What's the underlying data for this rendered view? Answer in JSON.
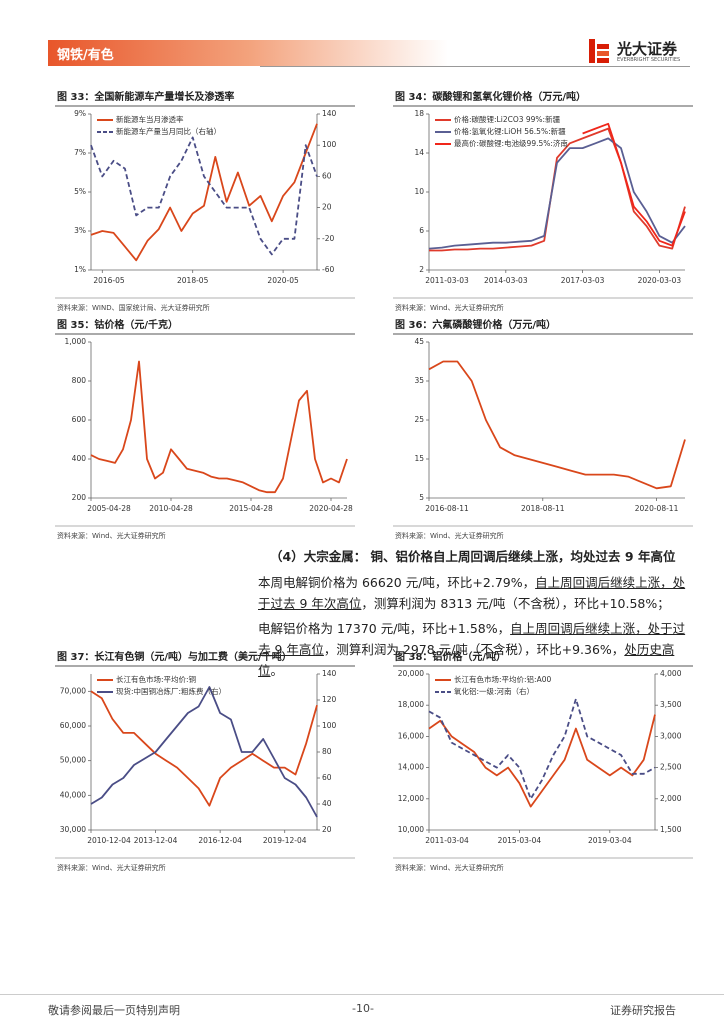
{
  "header": {
    "section": "钢铁/有色",
    "brand": "光大证券",
    "brand_en": "EVERBRIGHT SECURITIES"
  },
  "chart_data": [
    {
      "type": "line",
      "title": "图 33：全国新能源车产量增长及渗透率",
      "source": "资料来源：WIND、国家统计局、光大证券研究所",
      "categories": [
        "2016-02",
        "2016-05",
        "2016-08",
        "2016-11",
        "2017-02",
        "2017-05",
        "2017-08",
        "2017-11",
        "2018-02",
        "2018-05",
        "2018-08",
        "2018-11",
        "2019-02",
        "2019-05",
        "2019-08",
        "2019-11",
        "2020-02",
        "2020-05",
        "2020-08",
        "2020-11",
        "2021-02"
      ],
      "xticks": [
        "2016-05",
        "2018-05",
        "2020-05"
      ],
      "ylim": [
        1,
        9
      ],
      "yticks": [
        {
          "value": 1,
          "label": "1%"
        },
        {
          "value": 3,
          "label": "3%"
        },
        {
          "value": 5,
          "label": "5%"
        },
        {
          "value": 7,
          "label": "7%"
        },
        {
          "value": 9,
          "label": "9%"
        }
      ],
      "y2lim": [
        -60,
        140
      ],
      "y2ticks": [
        -60,
        -20,
        20,
        60,
        100,
        140
      ],
      "series": [
        {
          "name": "新能源车当月渗透率",
          "color": "#d9471b",
          "values": [
            2.8,
            3.0,
            2.9,
            2.2,
            1.5,
            2.5,
            3.1,
            4.2,
            3.0,
            3.9,
            4.3,
            6.8,
            4.5,
            6.0,
            4.3,
            4.8,
            3.5,
            4.8,
            5.5,
            7.0,
            8.5
          ]
        },
        {
          "name": "新能源车产量当月同比（右轴）",
          "color": "#4a4d86",
          "dash": true,
          "axis": "y2",
          "values": [
            100,
            60,
            80,
            70,
            10,
            20,
            20,
            60,
            80,
            110,
            60,
            40,
            20,
            20,
            20,
            -20,
            -40,
            -20,
            -20,
            100,
            60
          ]
        }
      ]
    },
    {
      "type": "line",
      "title": "图 34：碳酸锂和氢氧化锂价格（万元/吨）",
      "source": "资料来源：Wind、光大证券研究所",
      "categories": [
        "2011-03-03",
        "2011-09-03",
        "2012-03-03",
        "2012-09-03",
        "2013-03-03",
        "2013-09-03",
        "2014-03-03",
        "2014-09-03",
        "2015-03-03",
        "2015-09-03",
        "2016-03-03",
        "2016-09-03",
        "2017-03-03",
        "2017-09-03",
        "2018-03-03",
        "2018-09-03",
        "2019-03-03",
        "2019-09-03",
        "2020-03-03",
        "2020-09-03",
        "2021-03-03"
      ],
      "xticks": [
        "2011-03-03",
        "2014-03-03",
        "2017-03-03",
        "2020-03-03"
      ],
      "ylim": [
        2,
        18
      ],
      "yticks": [
        2,
        6,
        10,
        14,
        18
      ],
      "series": [
        {
          "name": "价格:碳酸锂:Li2CO3 99%:新疆",
          "color": "#e03a2b",
          "values": [
            4.0,
            4.0,
            4.1,
            4.1,
            4.2,
            4.2,
            4.3,
            4.4,
            4.5,
            5.0,
            13.5,
            15.0,
            15.5,
            16.0,
            16.5,
            13.0,
            8.0,
            6.5,
            4.5,
            4.2,
            8.5
          ]
        },
        {
          "name": "价格:氢氧化锂:LiOH 56.5%:新疆",
          "color": "#5a5f93",
          "values": [
            4.2,
            4.3,
            4.5,
            4.6,
            4.7,
            4.8,
            4.8,
            4.9,
            5.0,
            5.5,
            13.0,
            14.5,
            14.5,
            15.0,
            15.5,
            14.5,
            10.0,
            8.0,
            5.5,
            4.8,
            6.5
          ]
        },
        {
          "name": "最高价:碳酸锂:电池级99.5%:济南",
          "color": "#f0261a",
          "values": [
            null,
            null,
            null,
            null,
            null,
            null,
            null,
            null,
            null,
            null,
            null,
            null,
            16.0,
            16.5,
            17.0,
            13.0,
            8.5,
            7.0,
            5.0,
            4.5,
            8.0
          ]
        }
      ]
    },
    {
      "type": "line",
      "title": "图 35：钴价格（元/千克）",
      "source": "资料来源：Wind、光大证券研究所",
      "categories": [
        "2005-04-28",
        "2005-10-28",
        "2006-04-28",
        "2006-10-28",
        "2007-04-28",
        "2007-10-28",
        "2008-04-28",
        "2008-10-28",
        "2009-04-28",
        "2009-10-28",
        "2010-04-28",
        "2010-10-28",
        "2011-04-28",
        "2011-10-28",
        "2012-04-28",
        "2012-10-28",
        "2013-04-28",
        "2013-10-28",
        "2014-04-28",
        "2014-10-28",
        "2015-04-28",
        "2015-10-28",
        "2016-04-28",
        "2016-10-28",
        "2017-04-28",
        "2017-10-28",
        "2018-04-28",
        "2018-10-28",
        "2019-04-28",
        "2019-10-28",
        "2020-04-28",
        "2020-10-28",
        "2021-04-28"
      ],
      "xticks": [
        "2005-04-28",
        "2010-04-28",
        "2015-04-28",
        "2020-04-28"
      ],
      "ylim": [
        200,
        1000
      ],
      "yticks": [
        200,
        400,
        600,
        800,
        {
          "value": 1000,
          "label": "1,000"
        }
      ],
      "series": [
        {
          "name": "钴价格",
          "color": "#d9471b",
          "values": [
            420,
            400,
            390,
            380,
            450,
            600,
            900,
            400,
            300,
            330,
            450,
            400,
            350,
            340,
            330,
            310,
            300,
            300,
            290,
            280,
            260,
            240,
            230,
            230,
            300,
            500,
            700,
            750,
            400,
            280,
            300,
            280,
            400
          ]
        }
      ]
    },
    {
      "type": "line",
      "title": "图 36：六氟磷酸锂价格（万元/吨）",
      "source": "资料来源：Wind、光大证券研究所",
      "categories": [
        "2016-08-11",
        "2016-11-11",
        "2017-02-11",
        "2017-05-11",
        "2017-08-11",
        "2017-11-11",
        "2018-02-11",
        "2018-05-11",
        "2018-08-11",
        "2018-11-11",
        "2019-02-11",
        "2019-05-11",
        "2019-08-11",
        "2019-11-11",
        "2020-02-11",
        "2020-05-11",
        "2020-08-11",
        "2020-11-11",
        "2021-02-11"
      ],
      "xticks": [
        "2016-08-11",
        "2018-08-11",
        "2020-08-11"
      ],
      "ylim": [
        5,
        45
      ],
      "yticks": [
        5,
        15,
        25,
        35,
        45
      ],
      "series": [
        {
          "name": "六氟磷酸锂价格",
          "color": "#d9471b",
          "values": [
            38,
            40,
            40,
            35,
            25,
            18,
            16,
            15,
            14,
            13,
            12,
            11,
            11,
            11,
            10.5,
            9,
            7.5,
            8,
            20
          ]
        }
      ]
    },
    {
      "type": "line",
      "title": "图 37：长江有色铜（元/吨）与加工费（美元/千吨）",
      "source": "资料来源：Wind、光大证券研究所",
      "categories": [
        "2010-12-04",
        "2011-06-04",
        "2011-12-04",
        "2012-06-04",
        "2012-12-04",
        "2013-06-04",
        "2013-12-04",
        "2014-06-04",
        "2014-12-04",
        "2015-06-04",
        "2015-12-04",
        "2016-06-04",
        "2016-12-04",
        "2017-06-04",
        "2017-12-04",
        "2018-06-04",
        "2018-12-04",
        "2019-06-04",
        "2019-12-04",
        "2020-06-04",
        "2020-12-04",
        "2021-06-04"
      ],
      "xticks": [
        "2010-12-04",
        "2013-12-04",
        "2016-12-04",
        "2019-12-04"
      ],
      "ylim": [
        30000,
        75000
      ],
      "yticks": [
        {
          "value": 30000,
          "label": "30,000"
        },
        {
          "value": 40000,
          "label": "40,000"
        },
        {
          "value": 50000,
          "label": "50,000"
        },
        {
          "value": 60000,
          "label": "60,000"
        },
        {
          "value": 70000,
          "label": "70,000"
        }
      ],
      "y2lim": [
        20,
        140
      ],
      "y2ticks": [
        20,
        40,
        60,
        80,
        100,
        120,
        140
      ],
      "series": [
        {
          "name": "长江有色市场:平均价:铜",
          "color": "#d9471b",
          "values": [
            70000,
            68000,
            62000,
            58000,
            58000,
            55000,
            52000,
            50000,
            48000,
            45000,
            42000,
            37000,
            45000,
            48000,
            50000,
            52000,
            50000,
            48000,
            48000,
            46000,
            55000,
            66000
          ]
        },
        {
          "name": "现货:中国铜冶炼厂:粗炼费（右）",
          "color": "#4a4d86",
          "axis": "y2",
          "values": [
            40,
            45,
            55,
            60,
            70,
            75,
            80,
            90,
            100,
            110,
            115,
            130,
            110,
            105,
            80,
            80,
            90,
            75,
            60,
            55,
            45,
            30
          ]
        }
      ]
    },
    {
      "type": "line",
      "title": "图 38：铝价格（元/吨）",
      "source": "资料来源：Wind、光大证券研究所",
      "categories": [
        "2011-03-04",
        "2011-09-04",
        "2012-03-04",
        "2012-09-04",
        "2013-03-04",
        "2013-09-04",
        "2014-03-04",
        "2014-09-04",
        "2015-03-04",
        "2015-09-04",
        "2016-03-04",
        "2016-09-04",
        "2017-03-04",
        "2017-09-04",
        "2018-03-04",
        "2018-09-04",
        "2019-03-04",
        "2019-09-04",
        "2020-03-04",
        "2020-09-04",
        "2021-03-04"
      ],
      "xticks": [
        "2011-03-04",
        "2015-03-04",
        "2019-03-04"
      ],
      "ylim": [
        10000,
        20000
      ],
      "yticks": [
        {
          "value": 10000,
          "label": "10,000"
        },
        {
          "value": 12000,
          "label": "12,000"
        },
        {
          "value": 14000,
          "label": "14,000"
        },
        {
          "value": 16000,
          "label": "16,000"
        },
        {
          "value": 18000,
          "label": "18,000"
        },
        {
          "value": 20000,
          "label": "20,000"
        }
      ],
      "y2lim": [
        1500,
        4000
      ],
      "y2ticks": [
        {
          "value": 1500,
          "label": "1,500"
        },
        {
          "value": 2000,
          "label": "2,000"
        },
        {
          "value": 2500,
          "label": "2,500"
        },
        {
          "value": 3000,
          "label": "3,000"
        },
        {
          "value": 3500,
          "label": "3,500"
        },
        {
          "value": 4000,
          "label": "4,000"
        }
      ],
      "series": [
        {
          "name": "长江有色市场:平均价:铝:A00",
          "color": "#d9471b",
          "values": [
            16500,
            17000,
            16000,
            15500,
            15000,
            14000,
            13500,
            14000,
            13000,
            11500,
            12500,
            13500,
            14500,
            16500,
            14500,
            14000,
            13500,
            14000,
            13500,
            14500,
            17400
          ]
        },
        {
          "name": "氧化铝:一级:河南（右）",
          "color": "#4a4d86",
          "dash": true,
          "axis": "y2",
          "values": [
            3400,
            3300,
            2900,
            2800,
            2700,
            2600,
            2500,
            2700,
            2500,
            2000,
            2300,
            2700,
            3000,
            3600,
            3000,
            2900,
            2800,
            2700,
            2400,
            2400,
            2500
          ]
        }
      ]
    }
  ],
  "body": {
    "heading": "（4）大宗金属：  铜、铝价格自上周回调后继续上涨，均处过去 9 年高位",
    "paragraphs": [
      [
        {
          "text": "本周电解铜价格为 66620 元/吨，环比+2.79%，",
          "underline": false
        },
        {
          "text": "自上周回调后继续上涨，处于过去 9 年次高位",
          "underline": true
        },
        {
          "text": "，测算利润为 8313 元/吨（不含税），环比+10.58%；",
          "underline": false
        }
      ],
      [
        {
          "text": "电解铝价格为 17370 元/吨，环比+1.58%，",
          "underline": false
        },
        {
          "text": "自上周回调后继续上涨，处于过去 9 年高位",
          "underline": true
        },
        {
          "text": "，测算利润为 2978 元/吨（不含税），环比+9.36%，",
          "underline": false
        },
        {
          "text": "处历史高位",
          "underline": true
        },
        {
          "text": "。",
          "underline": false
        }
      ]
    ]
  },
  "footer": {
    "left": "敬请参阅最后一页特别声明",
    "page": "-10-",
    "right": "证券研究报告"
  }
}
